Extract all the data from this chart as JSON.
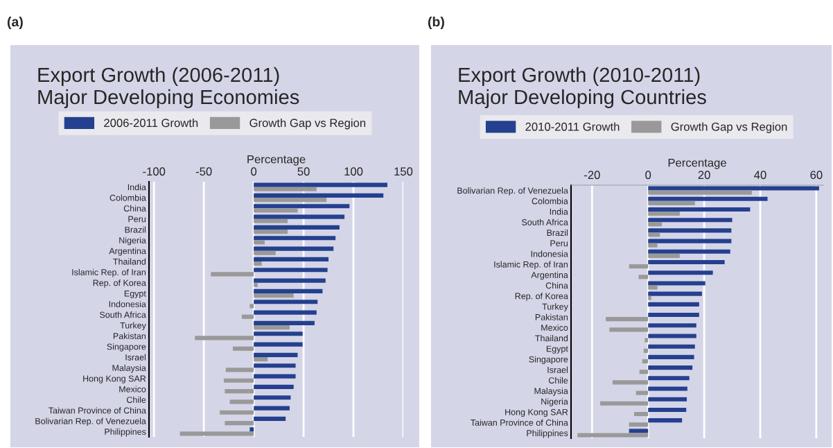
{
  "chart_data": [
    {
      "type": "bar",
      "orientation": "horizontal",
      "title": "Export Growth (2006-2011)",
      "subtitle": "Major Developing Economies",
      "xlabel": "Percentage",
      "annotations": [
        "(a)"
      ],
      "categories": [
        "India",
        "Colombia",
        "China",
        "Peru",
        "Brazil",
        "Nigeria",
        "Argentina",
        "Thailand",
        "Islamic Rep. of Iran",
        "Rep. of Korea",
        "Egypt",
        "Indonesia",
        "South Africa",
        "Turkey",
        "Pakistan",
        "Singapore",
        "Israel",
        "Malaysia",
        "Hong Kong SAR",
        "Mexico",
        "Chile",
        "Taiwan Province of China",
        "Bolivarian Rep. of Venezuela",
        "Philippines"
      ],
      "series": [
        {
          "name": "2006-2011 Growth",
          "color": "#24408e",
          "values": [
            134,
            130,
            96,
            91,
            86,
            82,
            80,
            75,
            74,
            72,
            69,
            64,
            63,
            61,
            49,
            49,
            44,
            42,
            42,
            40,
            37,
            36,
            32,
            -4
          ]
        },
        {
          "name": "Growth Gap vs Region",
          "color": "#999999",
          "values": [
            63,
            73,
            44,
            34,
            34,
            11,
            22,
            8,
            -43,
            4,
            40,
            -4,
            -12,
            36,
            -59,
            -21,
            14,
            -28,
            -30,
            -29,
            -24,
            -34,
            -29,
            -74
          ]
        }
      ],
      "xlim": [
        -105,
        150
      ],
      "xticks": [
        -100,
        -50,
        0,
        50,
        100,
        150
      ],
      "grid": "x",
      "legend": "top"
    },
    {
      "type": "bar",
      "orientation": "horizontal",
      "title": "Export Growth (2010-2011)",
      "subtitle": "Major Developing Countries",
      "xlabel": "Percentage",
      "annotations": [
        "(b)"
      ],
      "categories": [
        "Bolivarian Rep. of Venezuela",
        "Colombia",
        "India",
        "South Africa",
        "Brazil",
        "Peru",
        "Indonesia",
        "Islamic Rep. of Iran",
        "Argentina",
        "China",
        "Rep. of Korea",
        "Turkey",
        "Pakistan",
        "Mexico",
        "Thailand",
        "Egypt",
        "Singapore",
        "Israel",
        "Chile",
        "Malaysia",
        "Nigeria",
        "Hong Kong SAR",
        "Taiwan Province of China",
        "Philippines"
      ],
      "series": [
        {
          "name": "2010-2011 Growth",
          "color": "#24408e",
          "values": [
            61,
            42.6,
            36.4,
            30,
            29.7,
            29.7,
            29.3,
            27.3,
            23.1,
            20.4,
            19.2,
            18.2,
            18.2,
            17.2,
            17.2,
            16.7,
            16.4,
            15.8,
            14.7,
            14,
            13.8,
            13.6,
            12.1,
            -6.8
          ]
        },
        {
          "name": "Growth Gap vs Region",
          "color": "#999999",
          "values": [
            37,
            16.7,
            11.3,
            4.9,
            4.2,
            3.3,
            11.3,
            -6.8,
            -3.4,
            3.3,
            1.1,
            0,
            -15.1,
            -13.8,
            -1.2,
            -1.6,
            -2.1,
            -3.1,
            -12.7,
            -4.3,
            -17.1,
            -5,
            -6.8,
            -25.2
          ]
        }
      ],
      "xlim": [
        -27.5,
        62.5
      ],
      "xticks": [
        -20,
        0,
        20,
        40,
        60
      ],
      "grid": "x",
      "legend": "top"
    }
  ]
}
